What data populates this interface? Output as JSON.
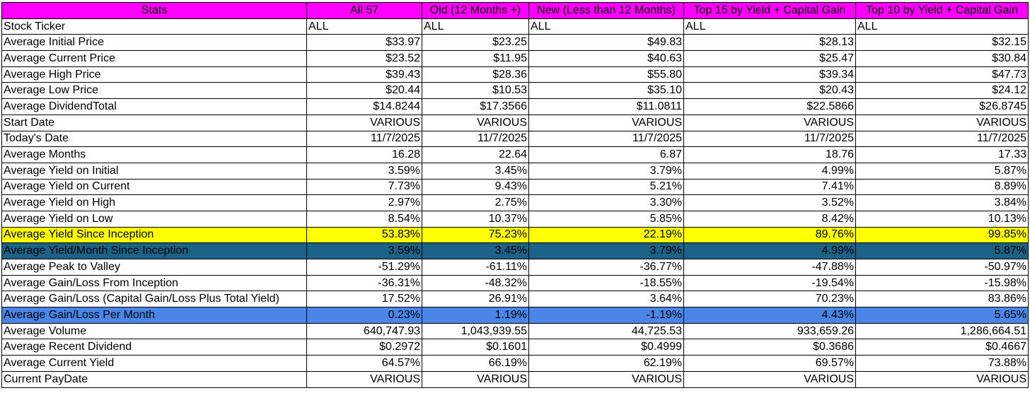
{
  "colors": {
    "header_bg": "#ff00ff",
    "highlight_yellow": "#ffff00",
    "highlight_teal": "#1b6286",
    "highlight_blue": "#4a86e8"
  },
  "header": [
    "Stats",
    "All 57",
    "Old (12 Months +)",
    "New (Less than 12 Months)",
    "Top 15 by Yield + Capital Gain",
    "Top 10 by Yield + Capital Gain"
  ],
  "rows": [
    {
      "cells": [
        "Stock Ticker",
        "ALL",
        "ALL",
        "ALL",
        "ALL",
        "ALL"
      ]
    },
    {
      "cells": [
        "Average Initial Price",
        "$33.97",
        "$23.25",
        "$49.83",
        "$28.13",
        "$32.15"
      ]
    },
    {
      "cells": [
        "Average Current Price",
        "$23.52",
        "$11.95",
        "$40.63",
        "$25.47",
        "$30.84"
      ]
    },
    {
      "cells": [
        "Average High Price",
        "$39.43",
        "$28.36",
        "$55.80",
        "$39.34",
        "$47.73"
      ]
    },
    {
      "cells": [
        "Average Low Price",
        "$20.44",
        "$10.53",
        "$35.10",
        "$20.43",
        "$24.12"
      ]
    },
    {
      "cells": [
        "Average DividendTotal",
        "$14.8244",
        "$17.3566",
        "$11.0811",
        "$22.5866",
        "$26.8745"
      ]
    },
    {
      "cells": [
        "Start Date",
        "VARIOUS",
        "VARIOUS",
        "VARIOUS",
        "VARIOUS",
        "VARIOUS"
      ]
    },
    {
      "cells": [
        "Today's Date",
        "11/7/2025",
        "11/7/2025",
        "11/7/2025",
        "11/7/2025",
        "11/7/2025"
      ]
    },
    {
      "cells": [
        "Average Months",
        "16.28",
        "22.64",
        "6.87",
        "18.76",
        "17.33"
      ]
    },
    {
      "cells": [
        "Average Yield on Initial",
        "3.59%",
        "3.45%",
        "3.79%",
        "4.99%",
        "5.87%"
      ]
    },
    {
      "cells": [
        "Average Yield on Current",
        "7.73%",
        "9.43%",
        "5.21%",
        "7.41%",
        "8.89%"
      ]
    },
    {
      "cells": [
        "Average Yield on High",
        "2.97%",
        "2.75%",
        "3.30%",
        "3.52%",
        "3.84%"
      ]
    },
    {
      "cells": [
        "Average Yield on Low",
        "8.54%",
        "10.37%",
        "5.85%",
        "8.42%",
        "10.13%"
      ]
    },
    {
      "cells": [
        "Average Yield Since Inception",
        "53.83%",
        "75.23%",
        "22.19%",
        "89.76%",
        "99.85%"
      ],
      "highlight": "yellow"
    },
    {
      "cells": [
        "Average Yield/Month Since Inception",
        "3.59%",
        "3.45%",
        "3.79%",
        "4.99%",
        "5.87%"
      ],
      "highlight": "teal"
    },
    {
      "cells": [
        "Average Peak to Valley",
        "-51.29%",
        "-61.11%",
        "-36.77%",
        "-47.88%",
        "-50.97%"
      ]
    },
    {
      "cells": [
        "Average Gain/Loss From Inception",
        "-36.31%",
        "-48.32%",
        "-18.55%",
        "-19.54%",
        "-15.98%"
      ]
    },
    {
      "cells": [
        "Average Gain/Loss (Capital Gain/Loss Plus Total Yield)",
        "17.52%",
        "26.91%",
        "3.64%",
        "70.23%",
        "83.86%"
      ]
    },
    {
      "cells": [
        "Average Gain/Loss Per Month",
        "0.23%",
        "1.19%",
        "-1.19%",
        "4.43%",
        "5.65%"
      ],
      "highlight": "blue"
    },
    {
      "cells": [
        "Average Volume",
        "640,747.93",
        "1,043,939.55",
        "44,725.53",
        "933,659.26",
        "1,286,664.51"
      ]
    },
    {
      "cells": [
        "Average Recent Dividend",
        "$0.2972",
        "$0.1601",
        "$0.4999",
        "$0.3686",
        "$0.4667"
      ]
    },
    {
      "cells": [
        "Average Current Yield",
        "64.57%",
        "66.19%",
        "62.19%",
        "69.57%",
        "73.88%"
      ]
    },
    {
      "cells": [
        "Current PayDate",
        "VARIOUS",
        "VARIOUS",
        "VARIOUS",
        "VARIOUS",
        "VARIOUS"
      ]
    }
  ]
}
